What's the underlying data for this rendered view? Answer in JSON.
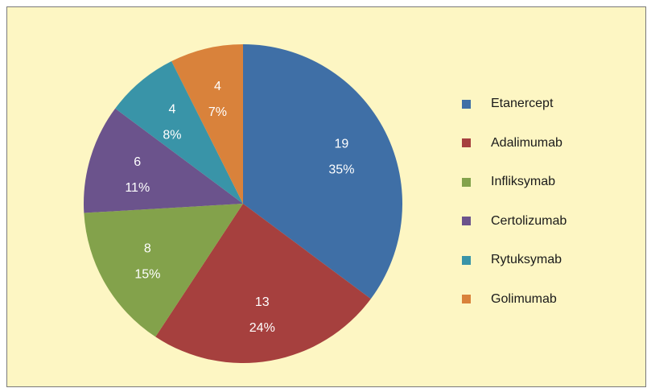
{
  "chart_data": {
    "type": "pie",
    "slices": [
      {
        "name": "Etanercept",
        "value": 19,
        "percent": "35%",
        "color": "#3f6fa6"
      },
      {
        "name": "Adalimumab",
        "value": 13,
        "percent": "24%",
        "color": "#a6403e"
      },
      {
        "name": "Infliksymab",
        "value": 8,
        "percent": "15%",
        "color": "#83a24b"
      },
      {
        "name": "Certolizumab",
        "value": 6,
        "percent": "11%",
        "color": "#6b538c"
      },
      {
        "name": "Rytuksymab",
        "value": 4,
        "percent": "8%",
        "color": "#3994a8"
      },
      {
        "name": "Golimumab",
        "value": 4,
        "percent": "7%",
        "color": "#d9823b"
      }
    ],
    "legend_position": "right",
    "background_color": "#fdf6c3"
  }
}
